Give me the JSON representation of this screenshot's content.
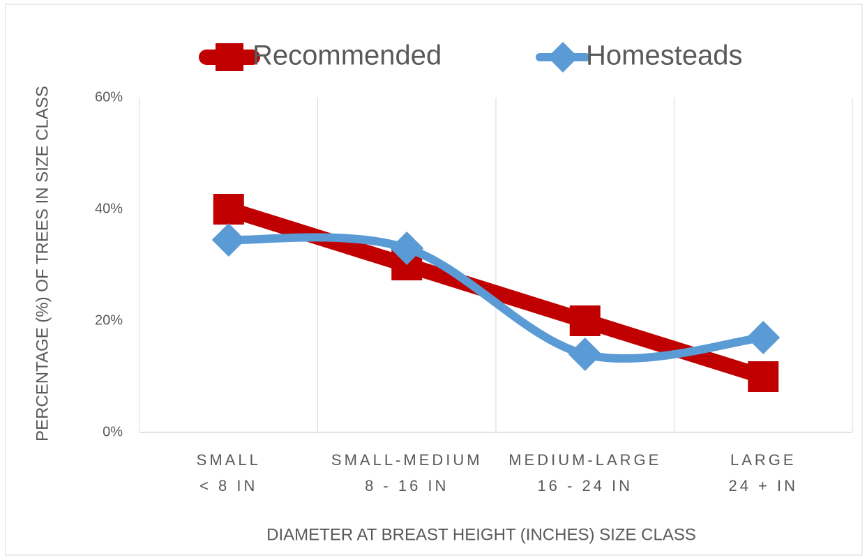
{
  "chart_data": {
    "type": "line",
    "ylabel": "PERCENTAGE (%) OF TREES IN SIZE CLASS",
    "xlabel": "DIAMETER AT BREAST HEIGHT (INCHES) SIZE CLASS",
    "categories": [
      [
        "SMALL",
        "< 8 IN"
      ],
      [
        "SMALL-MEDIUM",
        "8 - 16 IN"
      ],
      [
        "MEDIUM-LARGE",
        "16 - 24 IN"
      ],
      [
        "LARGE",
        "24 + IN"
      ]
    ],
    "series": [
      {
        "name": "Recommended",
        "color": "#c00000",
        "marker": "square",
        "smooth": false,
        "values": [
          40,
          30,
          20,
          10
        ]
      },
      {
        "name": "Homesteads",
        "color": "#5b9bd5",
        "marker": "diamond",
        "smooth": true,
        "values": [
          34.5,
          33,
          14,
          17
        ]
      }
    ],
    "ylim": [
      0,
      60
    ],
    "yticks": [
      {
        "value": 0,
        "label": "0%"
      },
      {
        "value": 20,
        "label": "20%"
      },
      {
        "value": 40,
        "label": "40%"
      },
      {
        "value": 60,
        "label": "60%"
      }
    ],
    "grid": true,
    "legend": "top"
  }
}
